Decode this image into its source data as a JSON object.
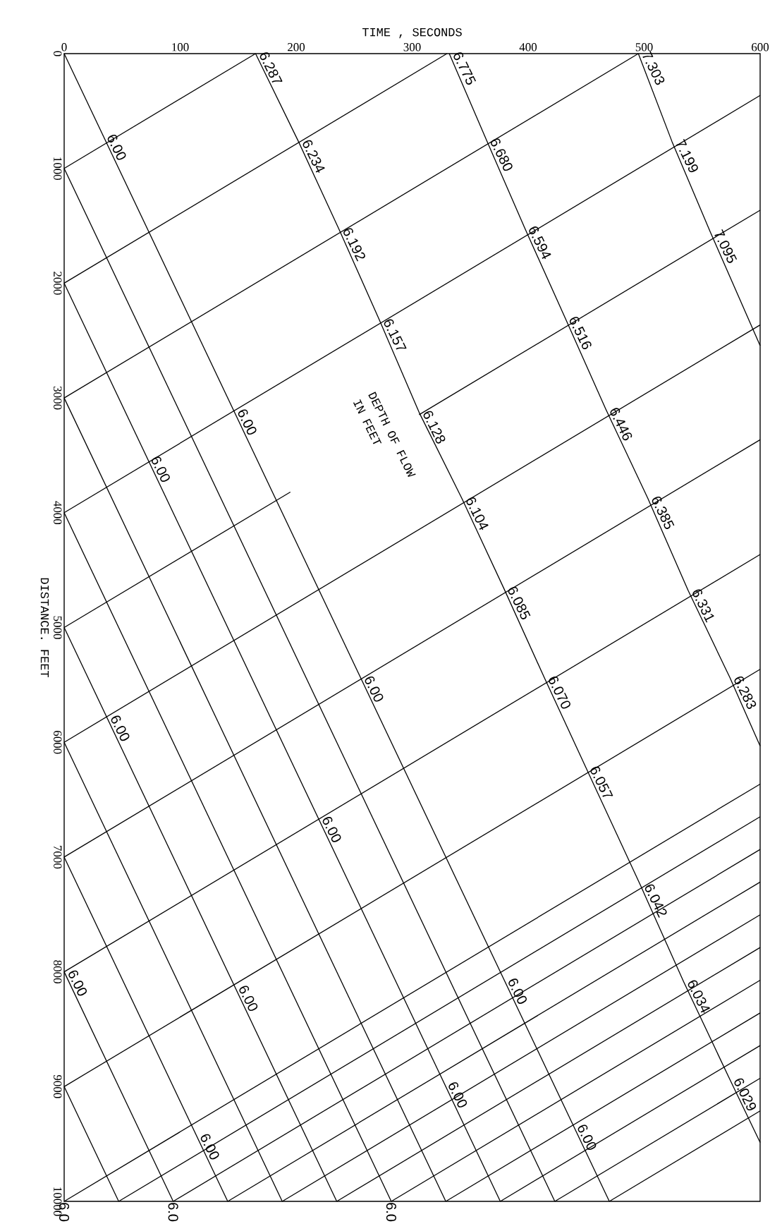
{
  "chart_data": {
    "type": "line",
    "xlabel": "TIME , SECONDS",
    "ylabel": "DISTANCE. FEET",
    "xlim": [
      0,
      600
    ],
    "ylim": [
      10000,
      0
    ],
    "xticks": [
      0,
      100,
      200,
      300,
      400,
      500,
      600
    ],
    "yticks": [
      0,
      1000,
      2000,
      3000,
      4000,
      5000,
      6000,
      7000,
      8000,
      9000,
      10000
    ],
    "series": [
      {
        "color": "#000000",
        "x": [
          0,
          165
        ],
        "values": [
          1000,
          0
        ]
      },
      {
        "color": "#000000",
        "x": [
          0,
          330
        ],
        "values": [
          2000,
          0
        ]
      },
      {
        "color": "#000000",
        "x": [
          0,
          495
        ],
        "values": [
          3000,
          0
        ]
      },
      {
        "color": "#000000",
        "x": [
          0,
          600
        ],
        "values": [
          4000,
          364
        ]
      },
      {
        "color": "#000000",
        "x": [
          0,
          195
        ],
        "values": [
          5000,
          3820
        ]
      },
      {
        "color": "#000000",
        "x": [
          306,
          600
        ],
        "values": [
          3146,
          1364
        ]
      },
      {
        "color": "#000000",
        "x": [
          0,
          600
        ],
        "values": [
          6000,
          2364
        ]
      },
      {
        "color": "#000000",
        "x": [
          0,
          600
        ],
        "values": [
          7000,
          3364
        ]
      },
      {
        "color": "#000000",
        "x": [
          0,
          600
        ],
        "values": [
          8000,
          4364
        ]
      },
      {
        "color": "#000000",
        "x": [
          0,
          600
        ],
        "values": [
          9000,
          5364
        ]
      },
      {
        "color": "#000000",
        "x": [
          0,
          600
        ],
        "values": [
          10000,
          6364
        ]
      },
      {
        "color": "#000000",
        "x": [
          47,
          600
        ],
        "values": [
          10000,
          6649
        ]
      },
      {
        "color": "#000000",
        "x": [
          94,
          600
        ],
        "values": [
          10000,
          6934
        ]
      },
      {
        "color": "#000000",
        "x": [
          141,
          600
        ],
        "values": [
          10000,
          7218
        ]
      },
      {
        "color": "#000000",
        "x": [
          188,
          600
        ],
        "values": [
          10000,
          7503
        ]
      },
      {
        "color": "#000000",
        "x": [
          235,
          600
        ],
        "values": [
          10000,
          7788
        ]
      },
      {
        "color": "#000000",
        "x": [
          282,
          600
        ],
        "values": [
          10000,
          8073
        ]
      },
      {
        "color": "#000000",
        "x": [
          329,
          600
        ],
        "values": [
          10000,
          8358
        ]
      },
      {
        "color": "#000000",
        "x": [
          376,
          600
        ],
        "values": [
          10000,
          8642
        ]
      },
      {
        "color": "#000000",
        "x": [
          423,
          600
        ],
        "values": [
          10000,
          8927
        ]
      },
      {
        "color": "#000000",
        "x": [
          470,
          600
        ],
        "values": [
          10000,
          9212
        ]
      },
      {
        "color": "#000000",
        "x": [
          0,
          470
        ],
        "values": [
          0,
          10000
        ]
      },
      {
        "color": "#000000",
        "x": [
          0,
          423
        ],
        "values": [
          1000,
          10000
        ]
      },
      {
        "color": "#000000",
        "x": [
          0,
          376
        ],
        "values": [
          2000,
          10000
        ]
      },
      {
        "color": "#000000",
        "x": [
          0,
          329
        ],
        "values": [
          3000,
          10000
        ]
      },
      {
        "color": "#000000",
        "x": [
          0,
          282
        ],
        "values": [
          4000,
          10000
        ]
      },
      {
        "color": "#000000",
        "x": [
          0,
          235
        ],
        "values": [
          5000,
          10000
        ]
      },
      {
        "color": "#000000",
        "x": [
          0,
          188
        ],
        "values": [
          6000,
          10000
        ]
      },
      {
        "color": "#000000",
        "x": [
          0,
          141
        ],
        "values": [
          7000,
          10000
        ]
      },
      {
        "color": "#000000",
        "x": [
          0,
          94
        ],
        "values": [
          8000,
          10000
        ]
      },
      {
        "color": "#000000",
        "x": [
          0,
          47
        ],
        "values": [
          9000,
          10000
        ]
      },
      {
        "color": "#000000",
        "x": [
          165,
          202,
          237,
          272,
          306,
          343,
          379,
          414,
          450,
          497,
          534,
          574,
          600
        ],
        "values": [
          0,
          766,
          1532,
          2326,
          3126,
          3878,
          4658,
          5438,
          6224,
          7250,
          8085,
          8940,
          9487
        ]
      },
      {
        "color": "#000000",
        "x": [
          332,
          364,
          397,
          432,
          467,
          503,
          538,
          574,
          600
        ],
        "values": [
          0,
          752,
          1518,
          2305,
          3099,
          3871,
          4679,
          5438,
          6033
        ]
      },
      {
        "color": "#000000",
        "x": [
          495,
          524,
          557,
          600
        ],
        "values": [
          0,
          766,
          1553,
          2544
        ]
      }
    ],
    "annotations": [
      "DEPTH OF FLOW",
      "IN FEET",
      {
        "text": "6.287",
        "x": 165,
        "y": 0
      },
      {
        "text": "6.234",
        "x": 202,
        "y": 766
      },
      {
        "text": "6.192",
        "x": 237,
        "y": 1532
      },
      {
        "text": "6.157",
        "x": 272,
        "y": 2326
      },
      {
        "text": "6.128",
        "x": 306,
        "y": 3126
      },
      {
        "text": "6.104",
        "x": 343,
        "y": 3878
      },
      {
        "text": "6.085",
        "x": 379,
        "y": 4658
      },
      {
        "text": "6.070",
        "x": 414,
        "y": 5438
      },
      {
        "text": "6.057",
        "x": 450,
        "y": 6224
      },
      {
        "text": "6.042",
        "x": 497,
        "y": 7250
      },
      {
        "text": "6.034",
        "x": 534,
        "y": 8085
      },
      {
        "text": "6.029",
        "x": 574,
        "y": 8940
      },
      {
        "text": "6.775",
        "x": 332,
        "y": 0
      },
      {
        "text": "6.680",
        "x": 364,
        "y": 752
      },
      {
        "text": "6.594",
        "x": 397,
        "y": 1518
      },
      {
        "text": "6.516",
        "x": 432,
        "y": 2305
      },
      {
        "text": "6.446",
        "x": 467,
        "y": 3099
      },
      {
        "text": "6.385",
        "x": 503,
        "y": 3871
      },
      {
        "text": "6.331",
        "x": 538,
        "y": 4679
      },
      {
        "text": "6.283",
        "x": 574,
        "y": 5438
      },
      {
        "text": "7.303",
        "x": 495,
        "y": 0
      },
      {
        "text": "7.199",
        "x": 524,
        "y": 766
      },
      {
        "text": "7.095",
        "x": 557,
        "y": 1553
      },
      {
        "text": "6.00",
        "x": 33.7,
        "y": 718
      },
      {
        "text": "6.00",
        "x": 71.6,
        "y": 3523
      },
      {
        "text": "6.00",
        "x": 146.2,
        "y": 3112
      },
      {
        "text": "6.00",
        "x": 255.5,
        "y": 5438
      },
      {
        "text": "6.00",
        "x": 36.7,
        "y": 5780
      },
      {
        "text": "6.00",
        "x": 219.1,
        "y": 6662
      },
      {
        "text": "6.00",
        "x": 0,
        "y": 8000
      },
      {
        "text": "6.00",
        "x": 147.2,
        "y": 8133
      },
      {
        "text": "6.00",
        "x": 379.3,
        "y": 8071
      },
      {
        "text": "6.00",
        "x": 327.7,
        "y": 8974
      },
      {
        "text": "6.00",
        "x": 439.1,
        "y": 9344
      },
      {
        "text": "6.00",
        "x": 114,
        "y": 9426
      },
      {
        "text": "6.0",
        "x": 0,
        "y": 10000
      },
      {
        "text": "6.0",
        "x": 94,
        "y": 10000
      },
      {
        "text": "6.0",
        "x": 282,
        "y": 10000
      }
    ]
  }
}
